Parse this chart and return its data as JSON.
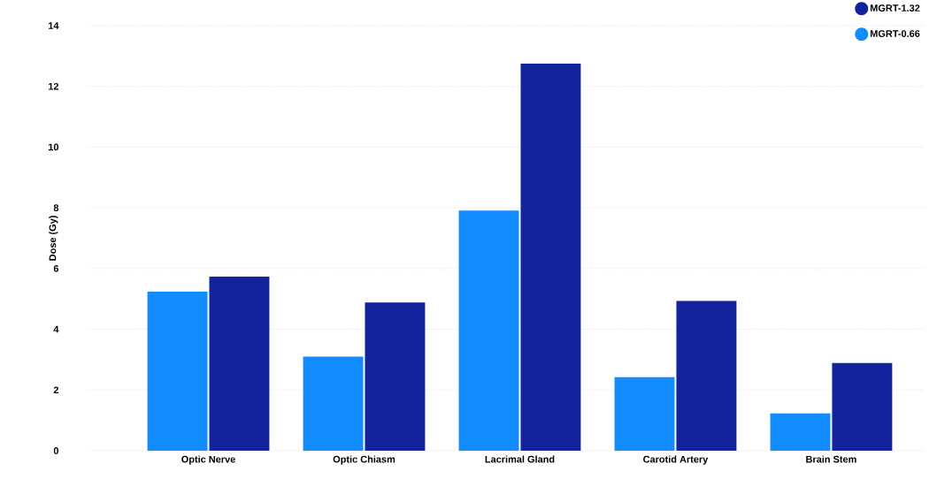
{
  "chart_data": {
    "type": "bar",
    "ylabel": "Dose (Gy)",
    "categories": [
      "Optic Nerve",
      "Optic Chiasm",
      "Lacrimal Gland",
      "Carotid Artery",
      "Brain Stem"
    ],
    "series": [
      {
        "name": "MGRT-0.66",
        "color": "#128cff",
        "values": [
          5.24,
          3.1,
          7.91,
          2.42,
          1.23
        ]
      },
      {
        "name": "MGRT-1.32",
        "color": "#12239b",
        "values": [
          5.73,
          4.88,
          12.75,
          4.93,
          2.89
        ]
      }
    ],
    "ylim": [
      0,
      14
    ],
    "yticks": [
      0,
      2,
      4,
      6,
      8,
      10,
      12,
      14
    ],
    "grid": "y",
    "legend": "top right"
  }
}
